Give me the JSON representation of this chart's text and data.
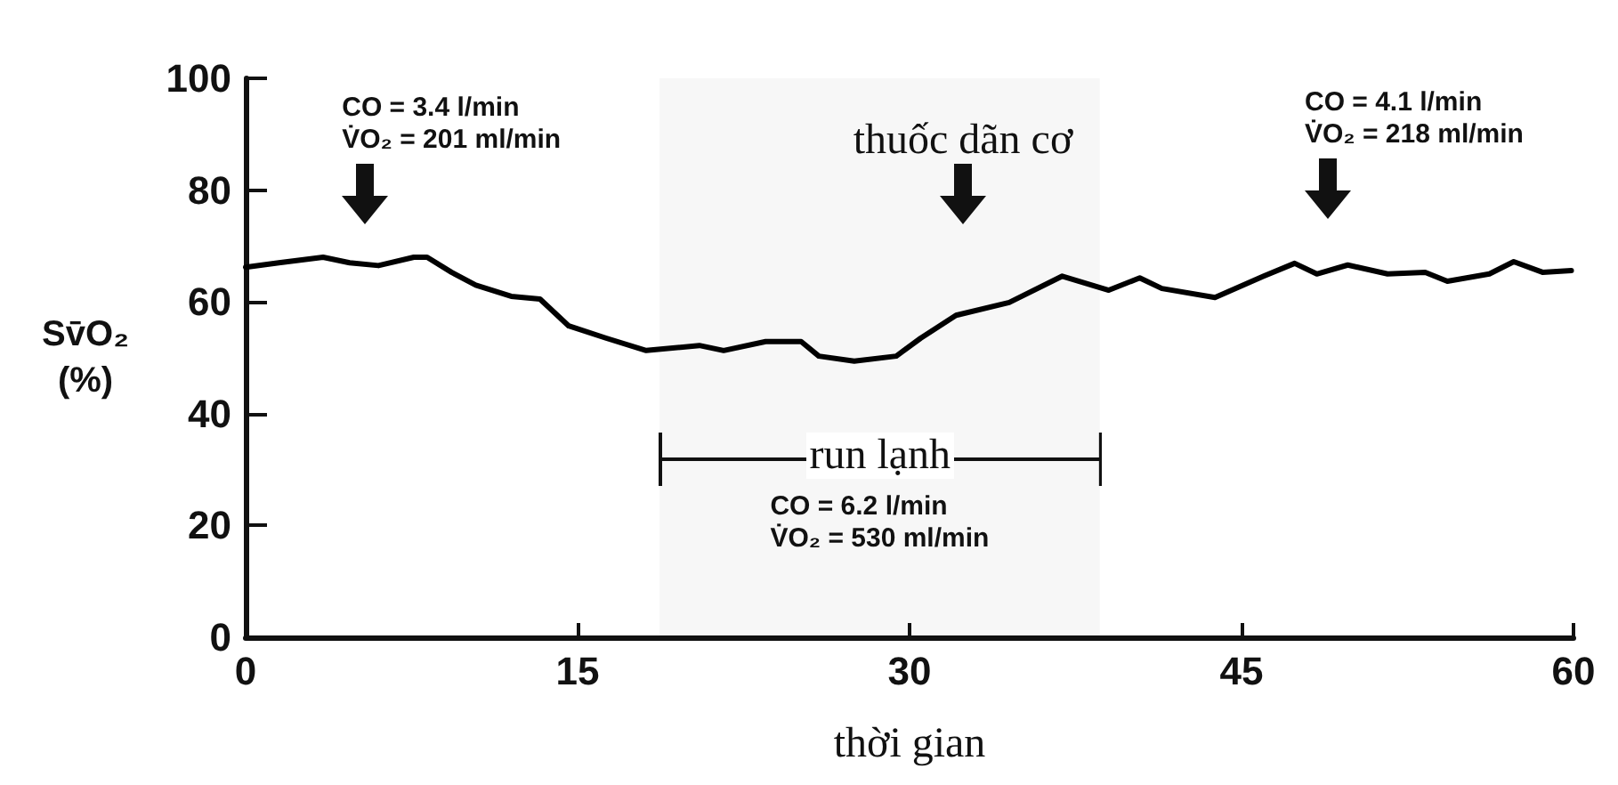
{
  "chart_data": {
    "type": "line",
    "xlabel": "thời gian",
    "ylabel": "Sv̄O₂\n(%)",
    "x": [
      0,
      1.5,
      3.5,
      4.7,
      6,
      7.6,
      8.2,
      9.3,
      10.4,
      12,
      13.3,
      14.6,
      16.3,
      18.1,
      20.5,
      21.6,
      23.5,
      25.1,
      25.9,
      27.5,
      29.4,
      30.5,
      32.1,
      34.5,
      36.9,
      39,
      40.4,
      41.4,
      43.8,
      46,
      47.4,
      48.4,
      49.8,
      51.6,
      53.3,
      54.3,
      56.2,
      57.3,
      58.6,
      59.9
    ],
    "series": [
      {
        "color": "#000000",
        "values": [
          66.2,
          67,
          68,
          67,
          66.5,
          68,
          68,
          65.3,
          63,
          61,
          60.5,
          55.7,
          53.5,
          51.3,
          52.2,
          51.3,
          52.9,
          52.9,
          50.3,
          49.4,
          50.3,
          53.5,
          57.6,
          59.9,
          64.6,
          62.1,
          64.3,
          62.4,
          60.8,
          64.6,
          66.9,
          65,
          66.6,
          65,
          65.3,
          63.7,
          65,
          67.2,
          65.3,
          65.6
        ]
      }
    ],
    "xlim": [
      0,
      60
    ],
    "xticks": [
      0,
      15,
      30,
      45,
      60
    ],
    "ylim": [
      0,
      100
    ],
    "yticks": [
      0,
      20,
      40,
      60,
      80,
      100
    ],
    "grid": false,
    "marker": "none",
    "line_style": "solid",
    "annotations": [
      "CO = 3.4 l/min\nV̇O₂ = 201 ml/min",
      "thuốc dãn cơ",
      "CO = 4.1 l/min\nV̇O₂ = 218 ml/min",
      "CO = 6.2 l/min\nV̇O₂ = 530 ml/min"
    ],
    "bands": [
      {
        "axis": "x",
        "from": 18.7,
        "to": 38.6,
        "label": "run lạnh"
      }
    ]
  }
}
